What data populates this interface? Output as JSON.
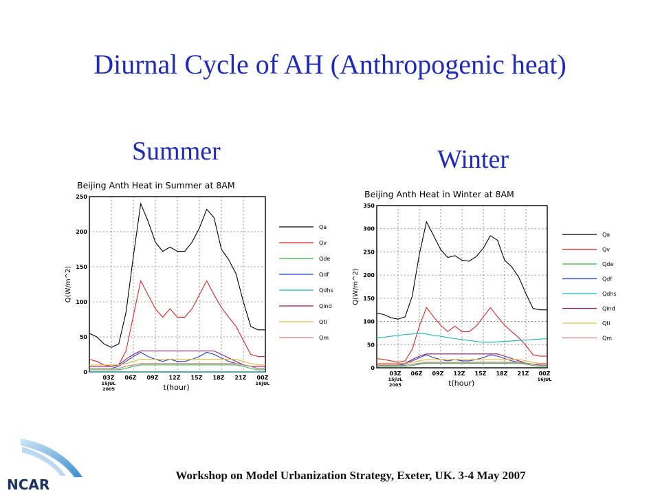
{
  "slide": {
    "title": "Diurnal Cycle of AH (Anthropogenic heat)",
    "summer_label": "Summer",
    "winter_label": "Winter",
    "footer": "Workshop on Model Urbanization Strategy, Exeter, UK. 3-4 May 2007",
    "logo_text": "NCAR"
  },
  "colors": {
    "title": "#1f2bb8",
    "Qa": "#000000",
    "Qv": "#d62728",
    "Qde": "#3cb44b",
    "Qdf": "#2b3ec8",
    "Qdhs": "#17b6b0",
    "Qind": "#8a1a6a",
    "Qti": "#e0c040",
    "Qm": "#c08080"
  },
  "chart_data": [
    {
      "type": "line",
      "title": "Beijing Anth Heat in Summer at 8AM",
      "xlabel": "t(hour)",
      "ylabel": "Q(W/m^2)",
      "ylim": [
        0,
        250
      ],
      "yticks": [
        "0",
        "50",
        "100",
        "150",
        "200",
        "250"
      ],
      "x": [
        0,
        1,
        2,
        3,
        4,
        5,
        6,
        7,
        8,
        9,
        10,
        11,
        12,
        13,
        14,
        15,
        16,
        17,
        18,
        19,
        20,
        21,
        22,
        23,
        24
      ],
      "xticks": [
        {
          "x": 3,
          "lines": [
            "03Z",
            "15JUL",
            "2005"
          ]
        },
        {
          "x": 6,
          "lines": [
            "06Z"
          ]
        },
        {
          "x": 9,
          "lines": [
            "09Z"
          ]
        },
        {
          "x": 12,
          "lines": [
            "12Z"
          ]
        },
        {
          "x": 15,
          "lines": [
            "15Z"
          ]
        },
        {
          "x": 18,
          "lines": [
            "18Z"
          ]
        },
        {
          "x": 21,
          "lines": [
            "21Z"
          ]
        },
        {
          "x": 24,
          "lines": [
            "00Z",
            "16JUL"
          ]
        }
      ],
      "grid": true,
      "legend_position": "right",
      "series": [
        {
          "name": "Qa",
          "color": "#000000",
          "values": [
            55,
            50,
            40,
            35,
            40,
            85,
            165,
            240,
            215,
            185,
            172,
            178,
            172,
            172,
            185,
            205,
            232,
            220,
            175,
            160,
            140,
            100,
            65,
            60,
            60
          ]
        },
        {
          "name": "Qv",
          "color": "#d62728",
          "values": [
            18,
            15,
            10,
            8,
            10,
            30,
            80,
            130,
            110,
            90,
            78,
            90,
            78,
            78,
            90,
            110,
            130,
            110,
            92,
            78,
            65,
            45,
            25,
            22,
            22
          ]
        },
        {
          "name": "Qde",
          "color": "#3cb44b",
          "values": [
            3,
            3,
            3,
            3,
            3,
            5,
            8,
            10,
            10,
            10,
            10,
            10,
            10,
            10,
            10,
            10,
            10,
            10,
            10,
            10,
            10,
            8,
            5,
            3,
            3
          ]
        },
        {
          "name": "Qdf",
          "color": "#2b3ec8",
          "values": [
            5,
            5,
            5,
            5,
            8,
            15,
            22,
            28,
            22,
            18,
            15,
            18,
            15,
            15,
            18,
            22,
            28,
            25,
            20,
            15,
            12,
            10,
            8,
            5,
            5
          ]
        },
        {
          "name": "Qdhs",
          "color": "#17b6b0",
          "values": [
            0,
            0,
            0,
            0,
            0,
            0,
            0,
            0,
            0,
            0,
            0,
            0,
            0,
            0,
            0,
            0,
            0,
            0,
            0,
            0,
            0,
            0,
            0,
            0,
            0
          ]
        },
        {
          "name": "Qind",
          "color": "#8a1a6a",
          "values": [
            8,
            8,
            8,
            8,
            10,
            18,
            25,
            30,
            30,
            30,
            30,
            30,
            30,
            30,
            30,
            30,
            30,
            30,
            25,
            20,
            15,
            10,
            8,
            8,
            8
          ]
        },
        {
          "name": "Qti",
          "color": "#e0c040",
          "values": [
            10,
            10,
            10,
            10,
            10,
            12,
            15,
            18,
            18,
            18,
            18,
            18,
            18,
            18,
            18,
            18,
            18,
            18,
            18,
            18,
            18,
            15,
            12,
            10,
            10
          ]
        },
        {
          "name": "Qm",
          "color": "#c08080",
          "values": [
            5,
            5,
            5,
            5,
            5,
            8,
            10,
            12,
            12,
            12,
            12,
            12,
            12,
            12,
            12,
            12,
            12,
            12,
            12,
            12,
            12,
            10,
            8,
            5,
            5
          ]
        }
      ]
    },
    {
      "type": "line",
      "title": "Beijing Anth Heat in Winter at 8AM",
      "xlabel": "t(hour)",
      "ylabel": "Q(W/m^2)",
      "ylim": [
        0,
        350
      ],
      "yticks": [
        "0",
        "50",
        "100",
        "150",
        "200",
        "250",
        "300",
        "350"
      ],
      "x": [
        0,
        1,
        2,
        3,
        4,
        5,
        6,
        7,
        8,
        9,
        10,
        11,
        12,
        13,
        14,
        15,
        16,
        17,
        18,
        19,
        20,
        21,
        22,
        23,
        24
      ],
      "xticks": [
        {
          "x": 3,
          "lines": [
            "03Z",
            "15JUL",
            "2005"
          ]
        },
        {
          "x": 6,
          "lines": [
            "06Z"
          ]
        },
        {
          "x": 9,
          "lines": [
            "09Z"
          ]
        },
        {
          "x": 12,
          "lines": [
            "12Z"
          ]
        },
        {
          "x": 15,
          "lines": [
            "15Z"
          ]
        },
        {
          "x": 18,
          "lines": [
            "18Z"
          ]
        },
        {
          "x": 21,
          "lines": [
            "21Z"
          ]
        },
        {
          "x": 24,
          "lines": [
            "00Z",
            "16JUL"
          ]
        }
      ],
      "grid": true,
      "legend_position": "right",
      "series": [
        {
          "name": "Qa",
          "color": "#000000",
          "values": [
            118,
            115,
            108,
            105,
            110,
            155,
            245,
            315,
            285,
            255,
            238,
            242,
            232,
            230,
            240,
            258,
            285,
            275,
            232,
            218,
            195,
            160,
            128,
            125,
            125
          ]
        },
        {
          "name": "Qv",
          "color": "#d62728",
          "values": [
            20,
            18,
            15,
            12,
            15,
            40,
            90,
            130,
            110,
            92,
            78,
            90,
            78,
            78,
            90,
            110,
            130,
            110,
            92,
            78,
            65,
            48,
            28,
            25,
            25
          ]
        },
        {
          "name": "Qde",
          "color": "#3cb44b",
          "values": [
            3,
            3,
            3,
            3,
            3,
            5,
            8,
            10,
            10,
            10,
            10,
            10,
            10,
            10,
            10,
            10,
            10,
            10,
            10,
            10,
            10,
            8,
            5,
            3,
            3
          ]
        },
        {
          "name": "Qdf",
          "color": "#2b3ec8",
          "values": [
            5,
            5,
            5,
            5,
            8,
            15,
            22,
            28,
            22,
            18,
            15,
            18,
            15,
            15,
            18,
            22,
            28,
            25,
            20,
            15,
            12,
            10,
            8,
            5,
            5
          ]
        },
        {
          "name": "Qdhs",
          "color": "#17b6b0",
          "values": [
            65,
            66,
            68,
            70,
            72,
            73,
            75,
            73,
            70,
            68,
            65,
            63,
            61,
            59,
            57,
            55,
            55,
            56,
            57,
            58,
            59,
            60,
            61,
            62,
            63
          ]
        },
        {
          "name": "Qind",
          "color": "#8a1a6a",
          "values": [
            8,
            8,
            8,
            8,
            10,
            18,
            25,
            30,
            30,
            30,
            30,
            30,
            30,
            30,
            30,
            30,
            30,
            30,
            25,
            20,
            15,
            10,
            8,
            8,
            8
          ]
        },
        {
          "name": "Qti",
          "color": "#e0c040",
          "values": [
            10,
            10,
            10,
            10,
            10,
            12,
            15,
            18,
            18,
            18,
            18,
            18,
            18,
            18,
            18,
            18,
            18,
            18,
            18,
            18,
            18,
            15,
            12,
            10,
            10
          ]
        },
        {
          "name": "Qm",
          "color": "#c08080",
          "values": [
            5,
            5,
            5,
            5,
            5,
            8,
            10,
            12,
            12,
            12,
            12,
            12,
            12,
            12,
            12,
            12,
            12,
            12,
            12,
            12,
            12,
            10,
            8,
            5,
            5
          ]
        }
      ]
    }
  ]
}
